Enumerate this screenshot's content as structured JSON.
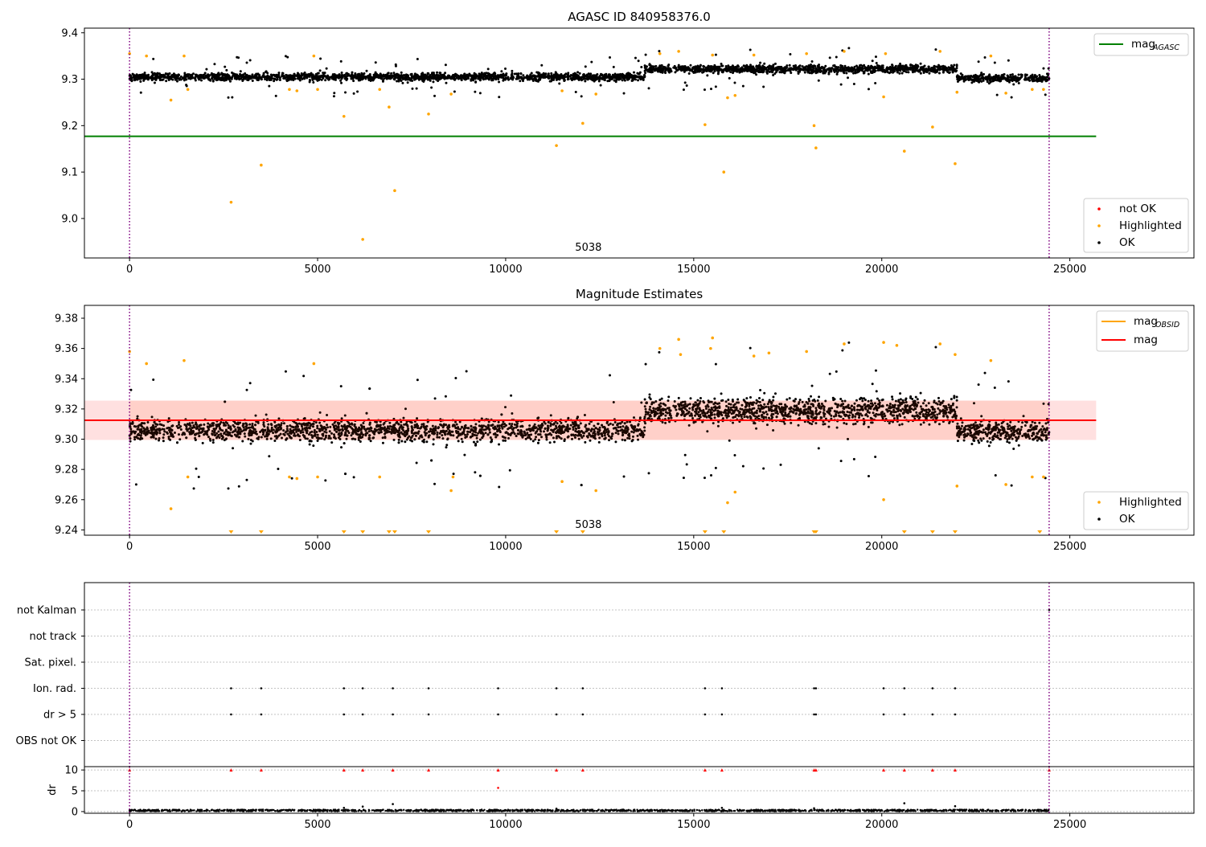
{
  "chart_data": [
    {
      "type": "scatter",
      "title": "AGASC ID 840958376.0",
      "xlim": [
        -1200,
        28300
      ],
      "ylim": [
        8.915,
        9.41
      ],
      "xticks": [
        0,
        5000,
        10000,
        15000,
        20000,
        25000
      ],
      "yticks": [
        9.0,
        9.1,
        9.2,
        9.3,
        9.4
      ],
      "ytick_labels": [
        "9.0",
        "9.1",
        "9.2",
        "9.3",
        "9.4"
      ],
      "annotation": "5038",
      "annotation_x": 12200,
      "mag_agasc": 9.177,
      "mag_agasc_x_range": [
        -1200,
        25700
      ],
      "vlines_x": [
        0,
        24450
      ],
      "ok_band": {
        "segments": [
          {
            "x": [
              0,
              13700
            ],
            "center": 9.305,
            "spread": 0.015
          },
          {
            "x": [
              13700,
              22000
            ],
            "center": 9.322,
            "spread": 0.015
          },
          {
            "x": [
              22000,
              24450
            ],
            "center": 9.302,
            "spread": 0.015
          }
        ]
      },
      "highlighted_points": [
        [
          0,
          9.355
        ],
        [
          450,
          9.35
        ],
        [
          1100,
          9.255
        ],
        [
          1450,
          9.35
        ],
        [
          1550,
          9.278
        ],
        [
          2700,
          9.035
        ],
        [
          3500,
          9.115
        ],
        [
          4250,
          9.278
        ],
        [
          4450,
          9.275
        ],
        [
          4900,
          9.35
        ],
        [
          5000,
          9.278
        ],
        [
          5700,
          9.22
        ],
        [
          6200,
          8.955
        ],
        [
          6650,
          9.278
        ],
        [
          6900,
          9.24
        ],
        [
          7050,
          9.06
        ],
        [
          7950,
          9.225
        ],
        [
          8550,
          9.268
        ],
        [
          11350,
          9.157
        ],
        [
          11500,
          9.275
        ],
        [
          12050,
          9.205
        ],
        [
          12400,
          9.268
        ],
        [
          14100,
          9.355
        ],
        [
          14600,
          9.36
        ],
        [
          15300,
          9.202
        ],
        [
          15500,
          9.352
        ],
        [
          15800,
          9.1
        ],
        [
          15900,
          9.26
        ],
        [
          16100,
          9.265
        ],
        [
          16600,
          9.352
        ],
        [
          18000,
          9.355
        ],
        [
          18200,
          9.2
        ],
        [
          18250,
          9.152
        ],
        [
          19000,
          9.36
        ],
        [
          20050,
          9.262
        ],
        [
          20100,
          9.355
        ],
        [
          20600,
          9.145
        ],
        [
          21350,
          9.197
        ],
        [
          21550,
          9.36
        ],
        [
          21950,
          9.118
        ],
        [
          22000,
          9.272
        ],
        [
          22900,
          9.35
        ],
        [
          23300,
          9.27
        ],
        [
          24000,
          9.278
        ],
        [
          24300,
          9.278
        ]
      ],
      "legend_top": [
        {
          "label": "mag",
          "subscript": "AGASC",
          "color": "#008000"
        }
      ],
      "legend_bottom": [
        {
          "label": "not OK",
          "color": "#ff0000"
        },
        {
          "label": "Highlighted",
          "color": "#ffa500"
        },
        {
          "label": "OK",
          "color": "#000000"
        }
      ],
      "grid": false
    },
    {
      "type": "scatter",
      "title": "Magnitude Estimates",
      "xlim": [
        -1200,
        28300
      ],
      "ylim": [
        9.2365,
        9.3885
      ],
      "xticks": [
        0,
        5000,
        10000,
        15000,
        20000,
        25000
      ],
      "yticks": [
        9.24,
        9.26,
        9.28,
        9.3,
        9.32,
        9.34,
        9.36,
        9.38
      ],
      "ytick_labels": [
        "9.24",
        "9.26",
        "9.28",
        "9.30",
        "9.32",
        "9.34",
        "9.36",
        "9.38"
      ],
      "annotation": "5038",
      "annotation_x": 12200,
      "mag": 9.3125,
      "mag_band": [
        9.2995,
        9.3255
      ],
      "mag_x_range": [
        -1200,
        25700
      ],
      "vlines_x": [
        0,
        24450
      ],
      "ok_band": {
        "segments": [
          {
            "x": [
              0,
              13700
            ],
            "center": 9.306,
            "spread": 0.013
          },
          {
            "x": [
              13700,
              22000
            ],
            "center": 9.319,
            "spread": 0.015
          },
          {
            "x": [
              22000,
              24450
            ],
            "center": 9.305,
            "spread": 0.013
          }
        ]
      },
      "highlighted_points": [
        [
          0,
          9.358
        ],
        [
          450,
          9.35
        ],
        [
          1100,
          9.254
        ],
        [
          1450,
          9.352
        ],
        [
          1550,
          9.275
        ],
        [
          4250,
          9.275
        ],
        [
          4450,
          9.274
        ],
        [
          4900,
          9.35
        ],
        [
          5000,
          9.275
        ],
        [
          6650,
          9.275
        ],
        [
          8550,
          9.266
        ],
        [
          8600,
          9.275
        ],
        [
          11500,
          9.272
        ],
        [
          12400,
          9.266
        ],
        [
          14100,
          9.36
        ],
        [
          14600,
          9.366
        ],
        [
          14650,
          9.356
        ],
        [
          15450,
          9.36
        ],
        [
          15500,
          9.367
        ],
        [
          15900,
          9.258
        ],
        [
          16100,
          9.265
        ],
        [
          16600,
          9.355
        ],
        [
          17000,
          9.357
        ],
        [
          18000,
          9.358
        ],
        [
          19000,
          9.363
        ],
        [
          20050,
          9.26
        ],
        [
          20050,
          9.364
        ],
        [
          20400,
          9.362
        ],
        [
          21550,
          9.363
        ],
        [
          21950,
          9.356
        ],
        [
          22000,
          9.269
        ],
        [
          22900,
          9.352
        ],
        [
          23300,
          9.27
        ],
        [
          24000,
          9.275
        ],
        [
          24300,
          9.275
        ]
      ],
      "clipped_points_x": [
        2700,
        3500,
        5700,
        6200,
        6900,
        7050,
        7950,
        11350,
        12050,
        15300,
        15800,
        18200,
        18250,
        20600,
        21350,
        21950,
        24200
      ],
      "legend_top": [
        {
          "label": "mag",
          "subscript": "OBSID",
          "color": "#ffa500"
        },
        {
          "label": "mag",
          "subscript": "",
          "color": "#ff0000"
        }
      ],
      "legend_bottom": [
        {
          "label": "Highlighted",
          "color": "#ffa500"
        },
        {
          "label": "OK",
          "color": "#000000"
        }
      ],
      "grid": false
    },
    {
      "type": "scatter",
      "title": "",
      "xlim": [
        -1200,
        28300
      ],
      "flag_rows": [
        "not Kalman",
        "not track",
        "Sat. pixel.",
        "Ion. rad.",
        "dr > 5",
        "OBS not OK"
      ],
      "vlines_x": [
        0,
        24450
      ],
      "flag_points": {
        "Ion. rad.": [
          2700,
          3500,
          5700,
          6200,
          7000,
          7950,
          9800,
          11350,
          12050,
          15300,
          15750,
          18200,
          18250,
          20050,
          20600,
          21350,
          21950
        ],
        "dr > 5": [
          2700,
          3500,
          5700,
          6200,
          7000,
          7950,
          9800,
          11350,
          12050,
          15300,
          15750,
          18200,
          18250,
          20050,
          20600,
          21350,
          21950
        ],
        "not Kalman": [
          24450
        ]
      },
      "grid": true
    },
    {
      "type": "scatter",
      "title": "",
      "ylabel": "dr",
      "xlim": [
        -1200,
        28300
      ],
      "ylim": [
        -0.4,
        10.8
      ],
      "xticks": [
        0,
        5000,
        10000,
        15000,
        20000,
        25000
      ],
      "yticks": [
        0,
        5,
        10
      ],
      "ytick_labels": [
        "0",
        "5",
        "10"
      ],
      "dr_baseline": 0.2,
      "dr_outliers": [
        [
          5700,
          0.9
        ],
        [
          6200,
          1.2
        ],
        [
          7000,
          1.8
        ],
        [
          9800,
          5.7
        ],
        [
          15750,
          0.9
        ],
        [
          18200,
          0.8
        ],
        [
          20600,
          2.0
        ],
        [
          21950,
          1.3
        ],
        [
          11350,
          0.7
        ]
      ],
      "dr_clipped_x": [
        0,
        2700,
        3500,
        5700,
        6200,
        7000,
        7950,
        9800,
        11350,
        12050,
        15300,
        15750,
        18200,
        18250,
        20050,
        20600,
        21350,
        21950,
        24450
      ],
      "vlines_x": [
        0,
        24450
      ],
      "grid": true
    }
  ]
}
